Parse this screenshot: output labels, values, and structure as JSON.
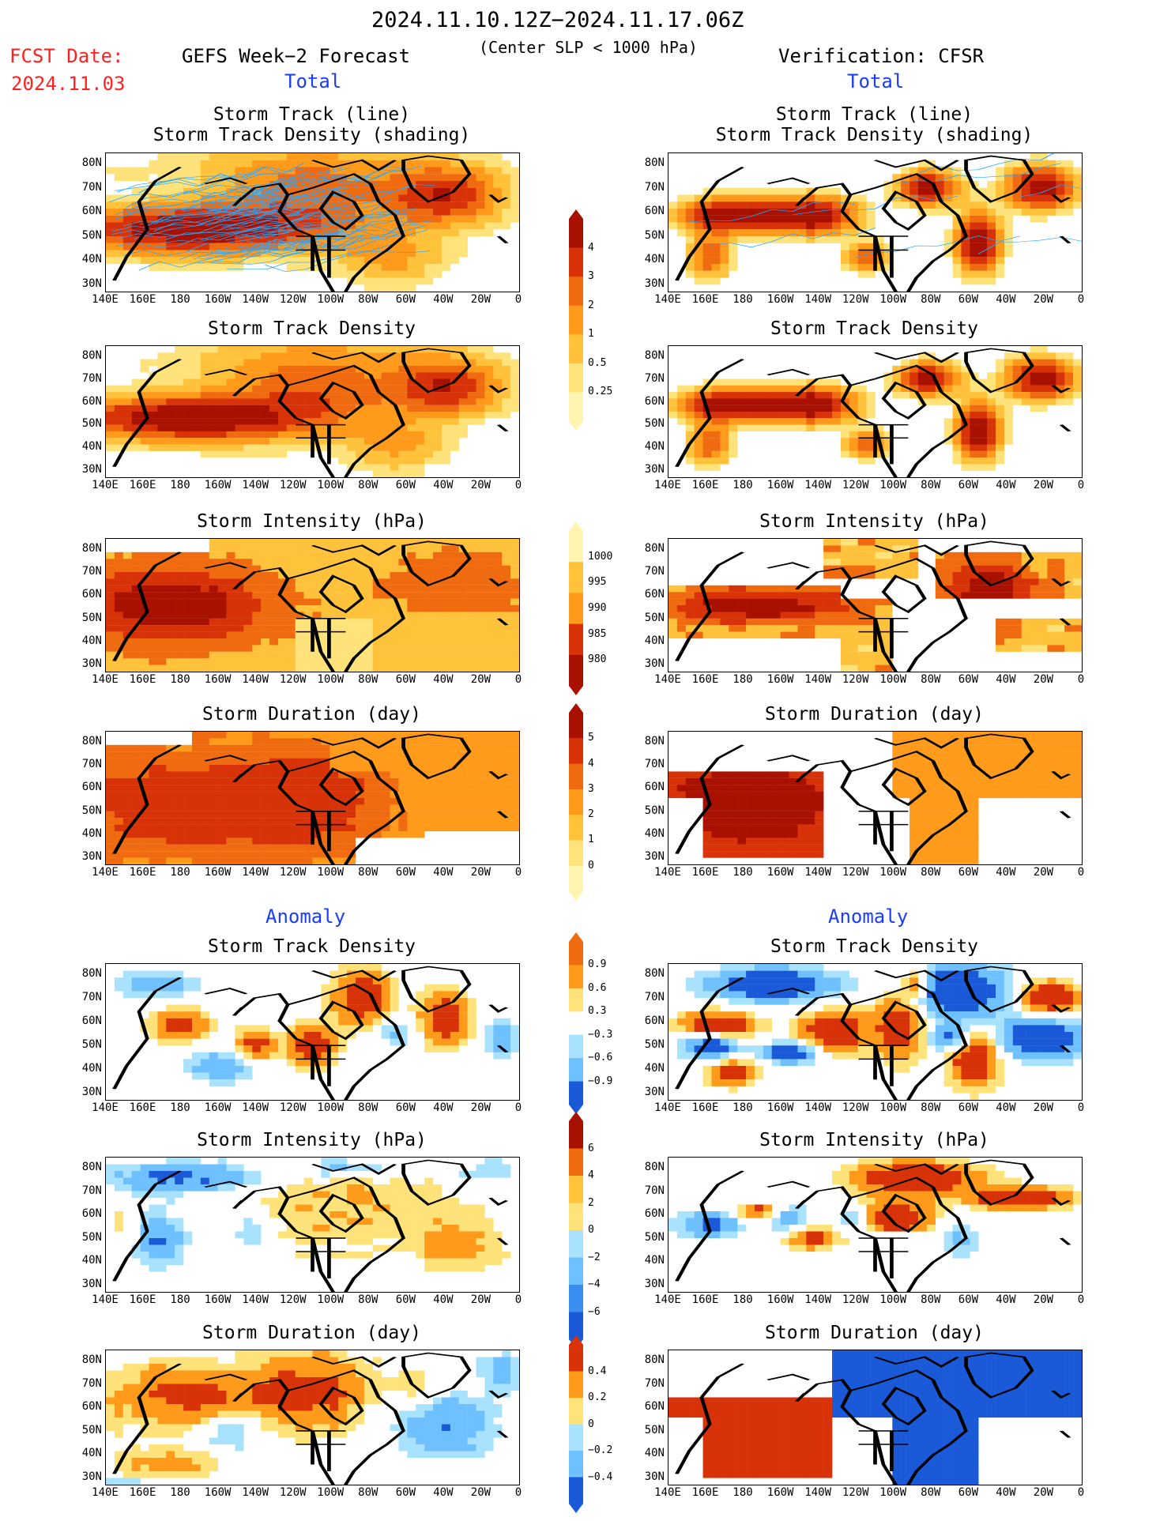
{
  "header": {
    "date_range": "2024.11.10.12Z−2024.11.17.06Z",
    "fcst_label": "FCST Date:",
    "fcst_date": "2024.11.03",
    "forecast_title": "GEFS Week−2 Forecast",
    "criterion": "(Center SLP < 1000 hPa)",
    "verification": "Verification: CFSR"
  },
  "sections": {
    "total": "Total",
    "anomaly": "Anomaly"
  },
  "panel_titles": {
    "track_line": "Storm Track (line)",
    "track_shading": "Storm Track Density (shading)",
    "track_density": "Storm Track Density",
    "intensity": "Storm Intensity (hPa)",
    "duration": "Storm Duration (day)"
  },
  "axes": {
    "lat": [
      "80N",
      "70N",
      "60N",
      "50N",
      "40N",
      "30N"
    ],
    "lon": [
      "140E",
      "160E",
      "180",
      "160W",
      "140W",
      "120W",
      "100W",
      "80W",
      "60W",
      "40W",
      "20W",
      "0"
    ]
  },
  "colorbars": {
    "density": [
      "4",
      "3",
      "2",
      "1",
      "0.5",
      "0.25"
    ],
    "intensity": [
      "1000",
      "995",
      "990",
      "985",
      "980"
    ],
    "duration": [
      "5",
      "4",
      "3",
      "2",
      "1",
      "0"
    ],
    "density_anom": [
      "0.9",
      "0.6",
      "0.3",
      "−0.3",
      "−0.6",
      "−0.9"
    ],
    "intensity_anom": [
      "6",
      "4",
      "2",
      "0",
      "−2",
      "−4",
      "−6"
    ],
    "duration_anom": [
      "0.4",
      "0.2",
      "0",
      "−0.2",
      "−0.4"
    ]
  },
  "colors": {
    "warm": [
      "#fff5b0",
      "#ffe27a",
      "#ffc23a",
      "#ff9a1a",
      "#f06a10",
      "#d83208",
      "#a81000"
    ],
    "cool": [
      "#d8f4ff",
      "#a8e2ff",
      "#6ec0ff",
      "#3a8ef0",
      "#1a5ad8"
    ],
    "track_line": "#2aa8ff",
    "track_dot": "#c01010",
    "title_blue": "#1a3cff",
    "title_red": "#ff2020"
  }
}
